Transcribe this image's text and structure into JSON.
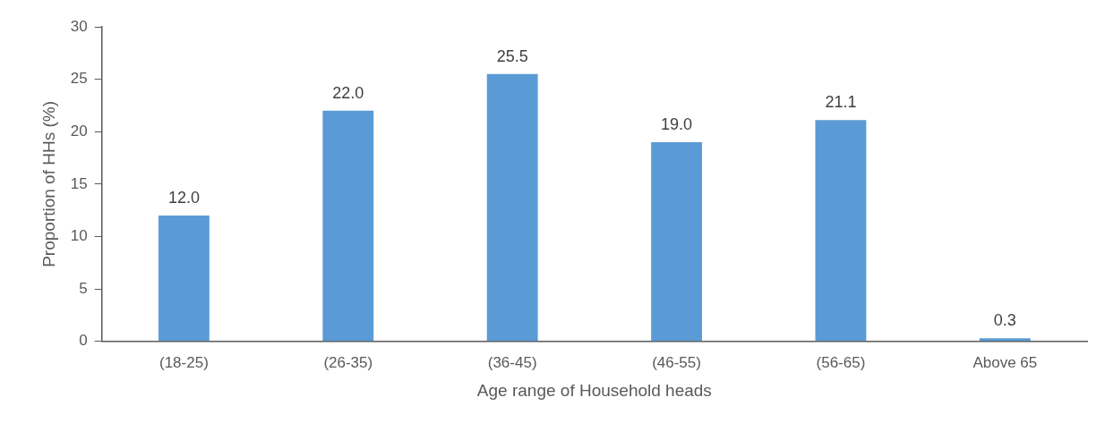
{
  "chart_data": {
    "type": "bar",
    "xlabel": "Age range of Household heads",
    "ylabel": "Proportion of HHs (%)",
    "categories": [
      "(18-25)",
      "(26-35)",
      "(36-45)",
      "(46-55)",
      "(56-65)",
      "Above 65"
    ],
    "values": [
      12.0,
      22.0,
      25.5,
      19.0,
      21.1,
      0.3
    ],
    "value_labels": [
      "12.0",
      "22.0",
      "25.5",
      "19.0",
      "21.1",
      "0.3"
    ],
    "color": "#5b9bd5",
    "ylim": [
      0,
      30
    ],
    "yticks": [
      0,
      5,
      10,
      15,
      20,
      25,
      30
    ],
    "grid": false,
    "legend": false
  }
}
